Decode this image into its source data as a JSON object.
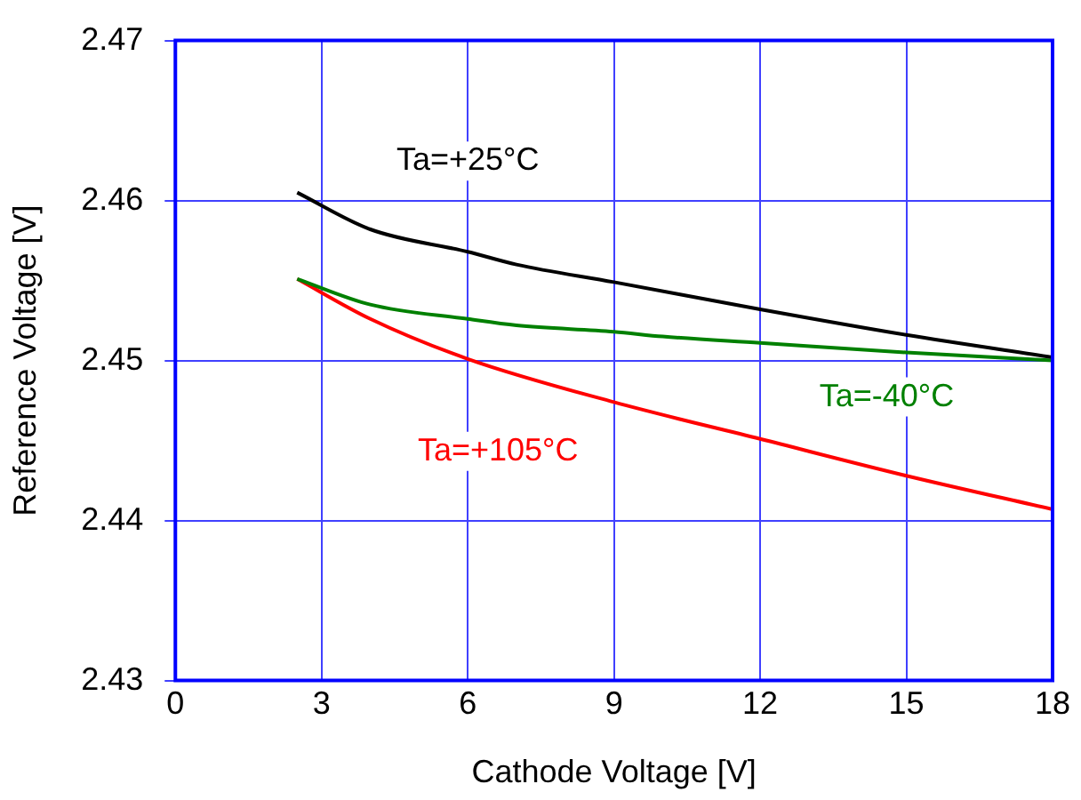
{
  "chart_data": {
    "type": "line",
    "xlabel": "Cathode Voltage [V]",
    "ylabel": "Reference Voltage [V]",
    "xlim": [
      0,
      18
    ],
    "xticks": [
      0,
      3,
      6,
      9,
      12,
      15,
      18
    ],
    "ylim": [
      2.43,
      2.47
    ],
    "yticks": [
      2.43,
      2.44,
      2.45,
      2.46,
      2.47
    ],
    "grid": true,
    "legend": false,
    "marker": "none",
    "line_style": "solid",
    "series": [
      {
        "name": "Ta=+25°C",
        "color": "#000000",
        "x": [
          2.5,
          4,
          6,
          7,
          9,
          12,
          15,
          18
        ],
        "values": [
          2.4605,
          2.4582,
          2.4568,
          2.456,
          2.4549,
          2.4532,
          2.4516,
          2.4502
        ]
      },
      {
        "name": "Ta=-40°C",
        "color": "#008000",
        "x": [
          2.5,
          4,
          6,
          7,
          9,
          10,
          12,
          15,
          18
        ],
        "values": [
          2.4551,
          2.4535,
          2.4526,
          2.4522,
          2.4518,
          2.4515,
          2.4511,
          2.4505,
          2.45
        ]
      },
      {
        "name": "Ta=+105°C",
        "color": "#ff0000",
        "x": [
          2.5,
          4,
          6,
          9,
          12,
          15,
          18
        ],
        "values": [
          2.4551,
          2.4526,
          2.4501,
          2.4474,
          2.4451,
          2.4428,
          2.4407
        ]
      }
    ]
  }
}
